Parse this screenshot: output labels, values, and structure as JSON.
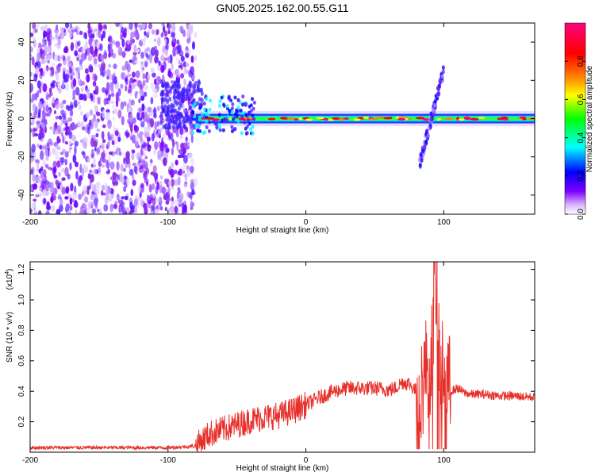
{
  "title": "GN05.2025.162.00.55.G11",
  "chart_data": [
    {
      "type": "heatmap",
      "xlabel": "Height of straight line (km)",
      "ylabel": "Frequency (Hz)",
      "xlim": [
        -200,
        166
      ],
      "ylim": [
        -50,
        50
      ],
      "x_ticks": [
        -200,
        -100,
        0,
        100
      ],
      "y_ticks": [
        -40,
        -20,
        0,
        20,
        40
      ],
      "colorbar": {
        "label": "Normalized spectral amplitude",
        "range": [
          0,
          1
        ],
        "ticks": [
          "0.0",
          "0.2",
          "0.4",
          "0.6",
          "0.8"
        ],
        "colormap": [
          "#ffffff",
          "#7b00ff",
          "#0000ff",
          "#00ffff",
          "#00ff00",
          "#ffff00",
          "#ff8000",
          "#ff0000",
          "#ff0080"
        ]
      },
      "regions": [
        {
          "x_range": [
            -200,
            -80
          ],
          "description_freq_range": [
            -50,
            50
          ],
          "amplitude": 0.1
        },
        {
          "x_range": [
            -80,
            166
          ],
          "center_freq": 0,
          "band_halfwidth": 3,
          "amplitude": 0.6
        },
        {
          "x_range": [
            84,
            100
          ],
          "freq_range": [
            -25,
            30
          ],
          "amplitude": 0.2
        }
      ]
    },
    {
      "type": "line",
      "xlabel": "Height of straight line (km)",
      "ylabel": "SNR (10 * v/v)",
      "y_multiplier": "(x10",
      "y_multiplier_exp": "4",
      "xlim": [
        -200,
        166
      ],
      "ylim": [
        0,
        1.25
      ],
      "x_ticks": [
        -200,
        -100,
        0,
        100
      ],
      "y_ticks": [
        "0.2",
        "0.4",
        "0.6",
        "0.8",
        "1.0",
        "1.2"
      ],
      "series": [
        {
          "color": "#e8302a",
          "x": [
            -200,
            -180,
            -160,
            -140,
            -120,
            -100,
            -80,
            -75,
            -70,
            -60,
            -50,
            -40,
            -30,
            -20,
            -10,
            0,
            10,
            20,
            30,
            40,
            50,
            60,
            65,
            70,
            75,
            80,
            85,
            88,
            90,
            92,
            94,
            96,
            98,
            100,
            105,
            110,
            115,
            120,
            130,
            140,
            150,
            166
          ],
          "y": [
            0.03,
            0.03,
            0.03,
            0.03,
            0.03,
            0.03,
            0.04,
            0.08,
            0.12,
            0.15,
            0.18,
            0.21,
            0.23,
            0.24,
            0.27,
            0.31,
            0.36,
            0.4,
            0.42,
            0.42,
            0.42,
            0.41,
            0.42,
            0.46,
            0.45,
            0.4,
            0.45,
            0.6,
            0.5,
            0.8,
            1.2,
            0.8,
            0.45,
            0.6,
            0.4,
            0.42,
            0.39,
            0.38,
            0.38,
            0.37,
            0.37,
            0.36
          ]
        }
      ]
    }
  ]
}
